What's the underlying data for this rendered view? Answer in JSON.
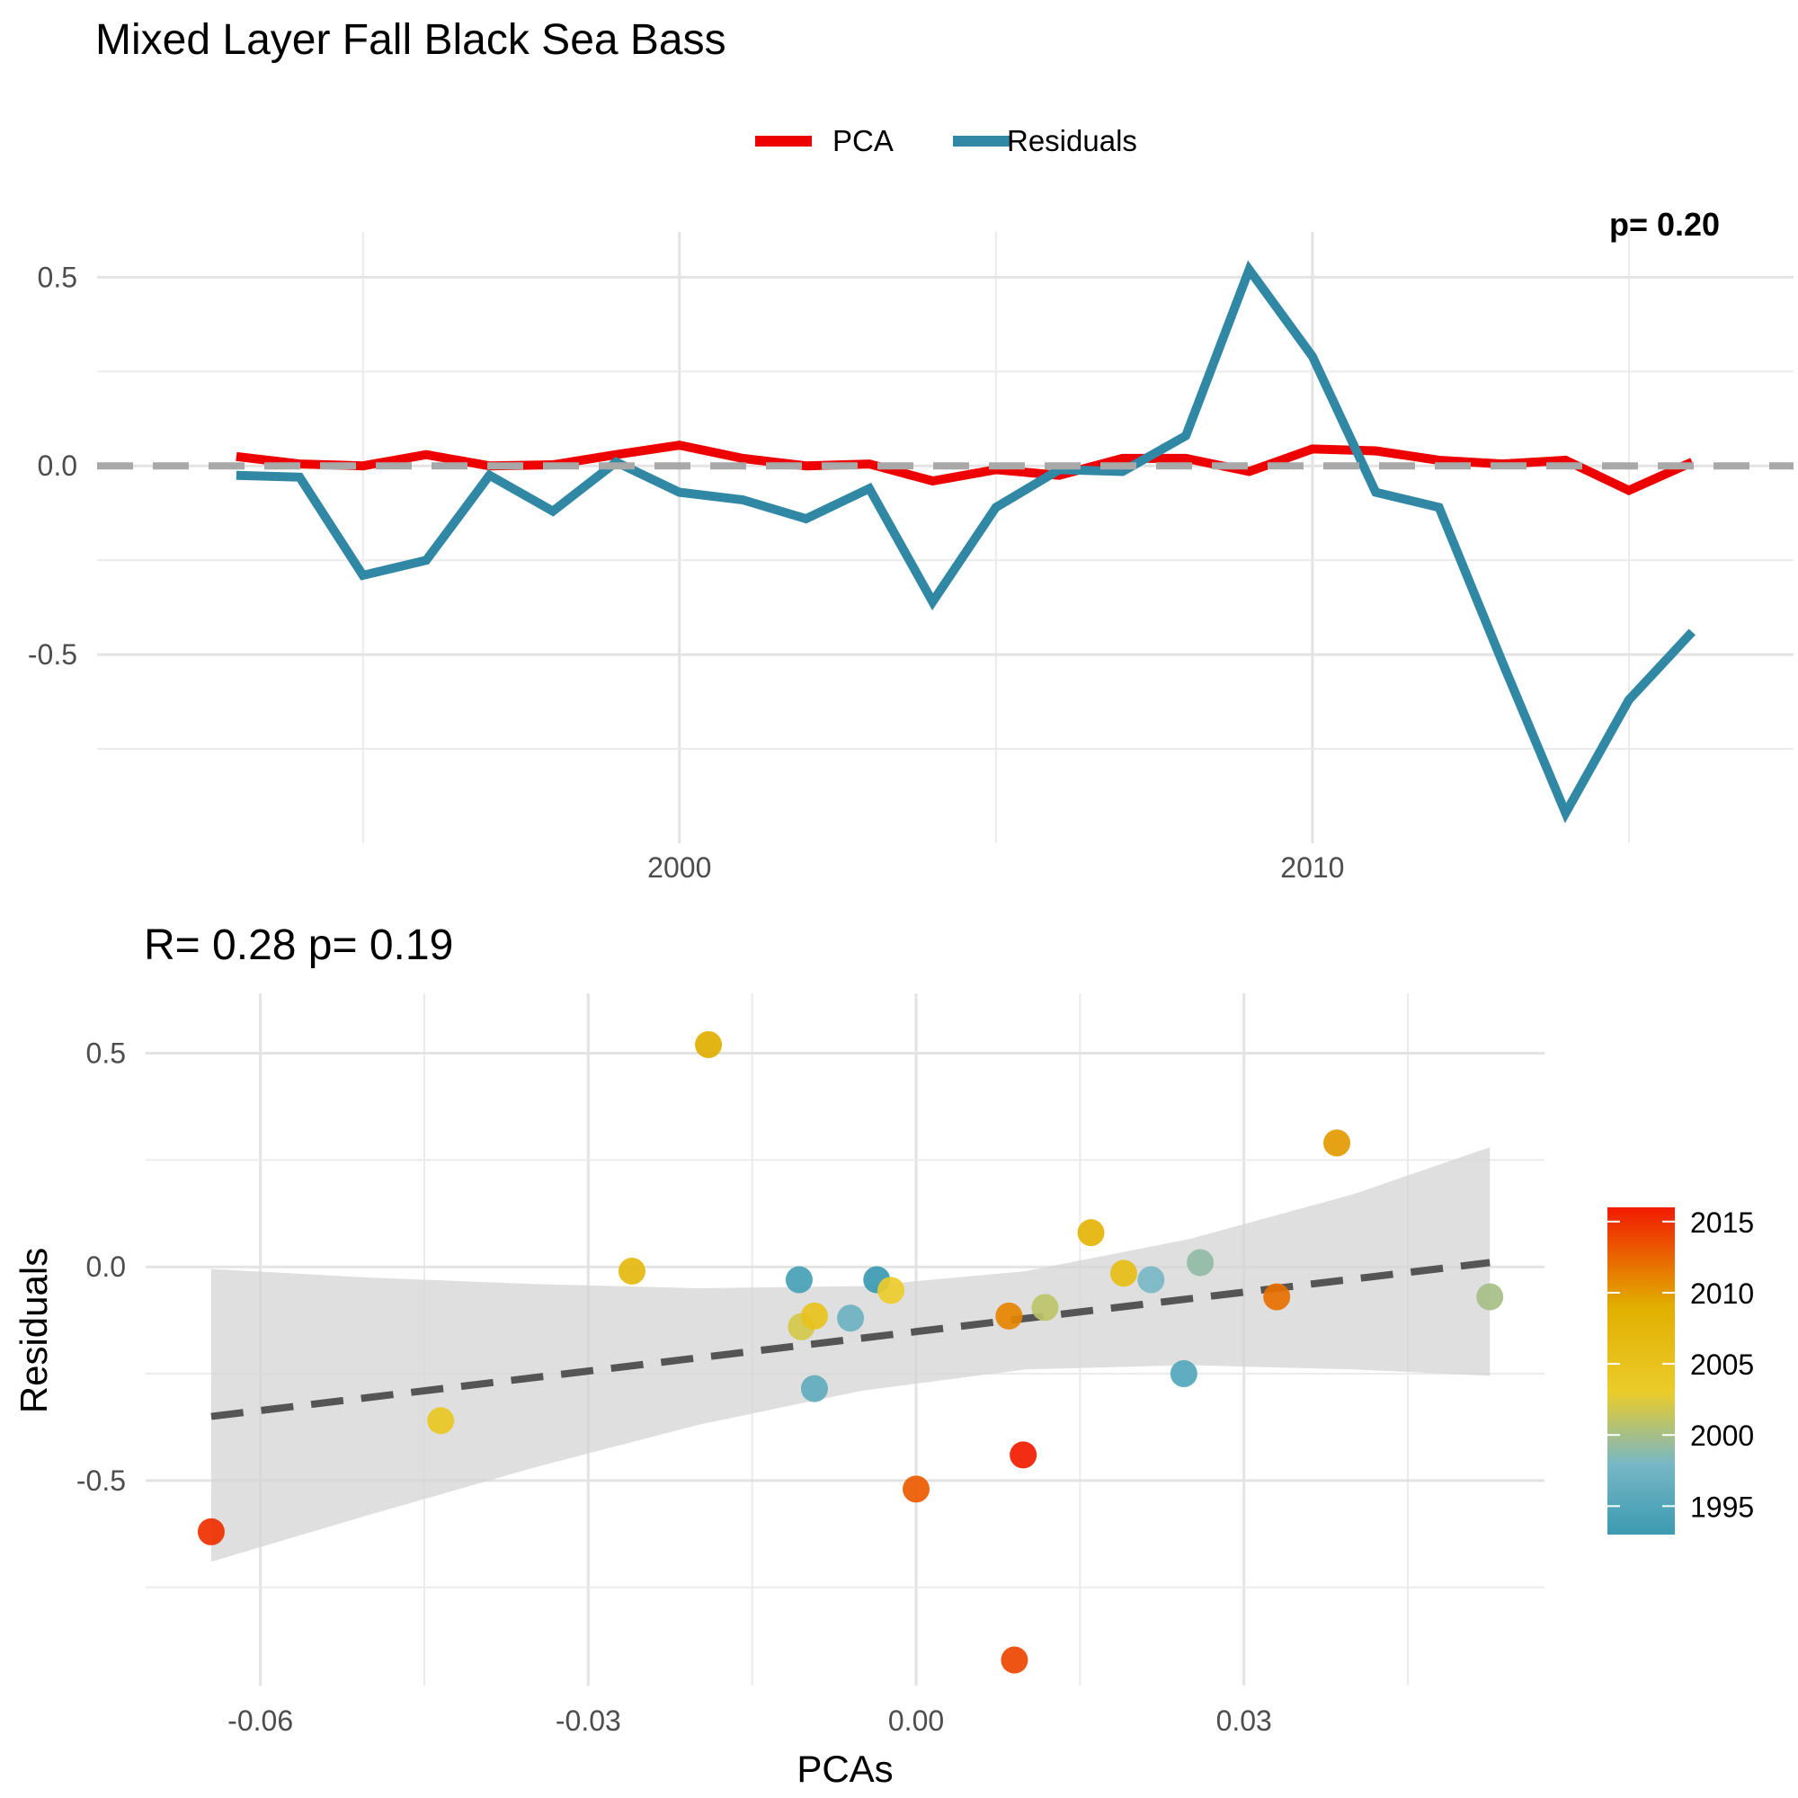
{
  "title": "Mixed Layer Fall Black Sea Bass",
  "top_corner_text": "p= 0.20",
  "chart_data": [
    {
      "type": "line",
      "legend": {
        "placement": "top",
        "entries": [
          {
            "label": "PCA",
            "color": "#EE0000"
          },
          {
            "label": "Residuals",
            "color": "#3188A5"
          }
        ]
      },
      "x": [
        1993,
        1994,
        1995,
        1996,
        1997,
        1998,
        1999,
        2000,
        2001,
        2002,
        2003,
        2004,
        2005,
        2006,
        2007,
        2008,
        2009,
        2010,
        2011,
        2012,
        2013,
        2014,
        2015,
        2016
      ],
      "series": [
        {
          "name": "PCA",
          "color": "#EE0000",
          "values": [
            0.025,
            0.005,
            0.0,
            0.03,
            0.0,
            0.003,
            0.03,
            0.055,
            0.02,
            0.0,
            0.005,
            -0.04,
            -0.01,
            -0.025,
            0.02,
            0.02,
            -0.015,
            0.045,
            0.04,
            0.015,
            0.005,
            0.015,
            -0.065,
            0.01
          ]
        },
        {
          "name": "Residuals",
          "color": "#3188A5",
          "values": [
            -0.025,
            -0.03,
            -0.29,
            -0.25,
            -0.025,
            -0.12,
            0.01,
            -0.07,
            -0.09,
            -0.14,
            -0.06,
            -0.36,
            -0.11,
            -0.01,
            -0.015,
            0.08,
            0.52,
            0.29,
            -0.07,
            -0.11,
            -0.52,
            -0.92,
            -0.62,
            -0.44
          ]
        }
      ],
      "zero_line": {
        "y": 0,
        "style": "dashed",
        "color": "#A8A8A8"
      },
      "xlim": [
        1990.8,
        2017.6
      ],
      "ylim": [
        -1.0,
        0.62
      ],
      "x_ticks": [
        2000,
        2010
      ],
      "x_tick_labels": [
        "2000",
        "2010"
      ],
      "y_ticks": [
        0.5,
        0.0,
        -0.5
      ],
      "y_tick_labels": [
        "0.5",
        "0.0",
        "-0.5"
      ],
      "grid": true
    },
    {
      "type": "scatter",
      "title": "R= 0.28  p= 0.19",
      "xlabel": "PCAs",
      "ylabel": "Residuals",
      "points": [
        {
          "x": -0.0645,
          "y": -0.62,
          "year": 2015
        },
        {
          "x": -0.0435,
          "y": -0.36,
          "year": 2004
        },
        {
          "x": -0.026,
          "y": -0.01,
          "year": 2007
        },
        {
          "x": -0.019,
          "y": 0.52,
          "year": 2009
        },
        {
          "x": -0.0107,
          "y": -0.03,
          "year": 1994
        },
        {
          "x": -0.0105,
          "y": -0.14,
          "year": 2002
        },
        {
          "x": -0.0093,
          "y": -0.115,
          "year": 2005
        },
        {
          "x": -0.0093,
          "y": -0.285,
          "year": 1996
        },
        {
          "x": -0.006,
          "y": -0.12,
          "year": 1997
        },
        {
          "x": -0.0036,
          "y": -0.03,
          "year": 1993
        },
        {
          "x": -0.0023,
          "y": -0.055,
          "year": 2003
        },
        {
          "x": 0.0,
          "y": -0.52,
          "year": 2013
        },
        {
          "x": 0.0085,
          "y": -0.115,
          "year": 2011
        },
        {
          "x": 0.009,
          "y": -0.92,
          "year": 2014
        },
        {
          "x": 0.0098,
          "y": -0.44,
          "year": 2016
        },
        {
          "x": 0.0118,
          "y": -0.095,
          "year": 2001
        },
        {
          "x": 0.016,
          "y": 0.08,
          "year": 2008
        },
        {
          "x": 0.019,
          "y": -0.015,
          "year": 2006
        },
        {
          "x": 0.0215,
          "y": -0.03,
          "year": 1998
        },
        {
          "x": 0.0245,
          "y": -0.25,
          "year": 1995
        },
        {
          "x": 0.026,
          "y": 0.01,
          "year": 1999
        },
        {
          "x": 0.033,
          "y": -0.07,
          "year": 2012
        },
        {
          "x": 0.0385,
          "y": 0.29,
          "year": 2010
        },
        {
          "x": 0.0525,
          "y": -0.07,
          "year": 2000
        }
      ],
      "trend": {
        "x": [
          -0.0645,
          0.0525
        ],
        "y": [
          -0.35,
          0.01
        ],
        "style": "dashed",
        "color": "#555555"
      },
      "confidence_band": {
        "x": [
          -0.0645,
          -0.05,
          -0.035,
          -0.02,
          -0.005,
          0.01,
          0.025,
          0.04,
          0.0525
        ],
        "upper": [
          -0.005,
          -0.025,
          -0.04,
          -0.05,
          -0.045,
          -0.01,
          0.065,
          0.17,
          0.28
        ],
        "lower": [
          -0.69,
          -0.58,
          -0.47,
          -0.37,
          -0.29,
          -0.24,
          -0.23,
          -0.24,
          -0.255
        ]
      },
      "xlim": [
        -0.0705,
        0.0575
      ],
      "ylim": [
        -0.98,
        0.64
      ],
      "x_ticks": [
        -0.06,
        -0.03,
        0.0,
        0.03
      ],
      "x_tick_labels": [
        "-0.06",
        "-0.03",
        "0.00",
        "0.03"
      ],
      "y_ticks": [
        0.5,
        0.0,
        -0.5
      ],
      "y_tick_labels": [
        "0.5",
        "0.0",
        "-0.5"
      ],
      "grid": true,
      "colorbar": {
        "labels": [
          "2015",
          "2010",
          "2005",
          "2000",
          "1995"
        ],
        "values": [
          2015,
          2010,
          2005,
          2000,
          1995
        ],
        "range": [
          1993,
          2016
        ],
        "stops": [
          {
            "year": 1993,
            "color": "#3B9AB2"
          },
          {
            "year": 1998,
            "color": "#78B7C5"
          },
          {
            "year": 2003,
            "color": "#EBCC2A"
          },
          {
            "year": 2009,
            "color": "#E1AF00"
          },
          {
            "year": 2016,
            "color": "#F21A00"
          }
        ]
      }
    }
  ]
}
